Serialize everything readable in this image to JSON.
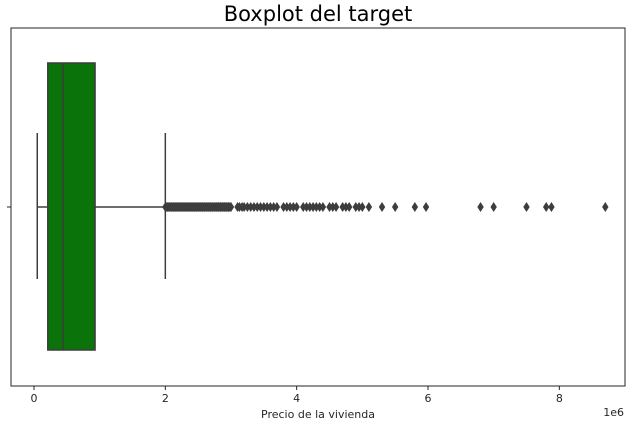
{
  "chart_data": {
    "type": "boxplot",
    "title": "Boxplot del target",
    "xlabel": "Precio de la vivienda",
    "ylabel": "",
    "x_multiplier_label": "1e6",
    "x_tick_labels": [
      "0",
      "2",
      "4",
      "6",
      "8"
    ],
    "x_ticks": [
      0,
      2,
      4,
      6,
      8
    ],
    "xlim": [
      -0.35,
      9.0
    ],
    "orientation": "horizontal",
    "grid": false,
    "box_color": "#0a730a",
    "line_color": "#3d3d3d",
    "box": {
      "whisker_low": 0.05,
      "q1": 0.21,
      "median": 0.44,
      "q3": 0.93,
      "whisker_high": 2.0
    },
    "dense_outlier_range": [
      2.0,
      3.0
    ],
    "outliers": [
      2.0,
      2.03,
      2.06,
      2.09,
      2.12,
      2.15,
      2.18,
      2.21,
      2.24,
      2.27,
      2.3,
      2.33,
      2.36,
      2.39,
      2.42,
      2.45,
      2.48,
      2.51,
      2.54,
      2.57,
      2.6,
      2.63,
      2.66,
      2.69,
      2.72,
      2.75,
      2.78,
      2.81,
      2.84,
      2.87,
      2.9,
      2.93,
      2.96,
      3.0,
      3.1,
      3.13,
      3.17,
      3.2,
      3.25,
      3.3,
      3.35,
      3.4,
      3.45,
      3.5,
      3.55,
      3.6,
      3.65,
      3.7,
      3.8,
      3.85,
      3.9,
      3.95,
      4.0,
      4.1,
      4.15,
      4.2,
      4.25,
      4.3,
      4.35,
      4.4,
      4.5,
      4.55,
      4.6,
      4.7,
      4.75,
      4.8,
      4.9,
      4.95,
      5.0,
      5.1,
      5.3,
      5.5,
      5.8,
      5.97,
      6.8,
      7.0,
      7.5,
      7.8,
      7.88,
      8.7
    ]
  }
}
